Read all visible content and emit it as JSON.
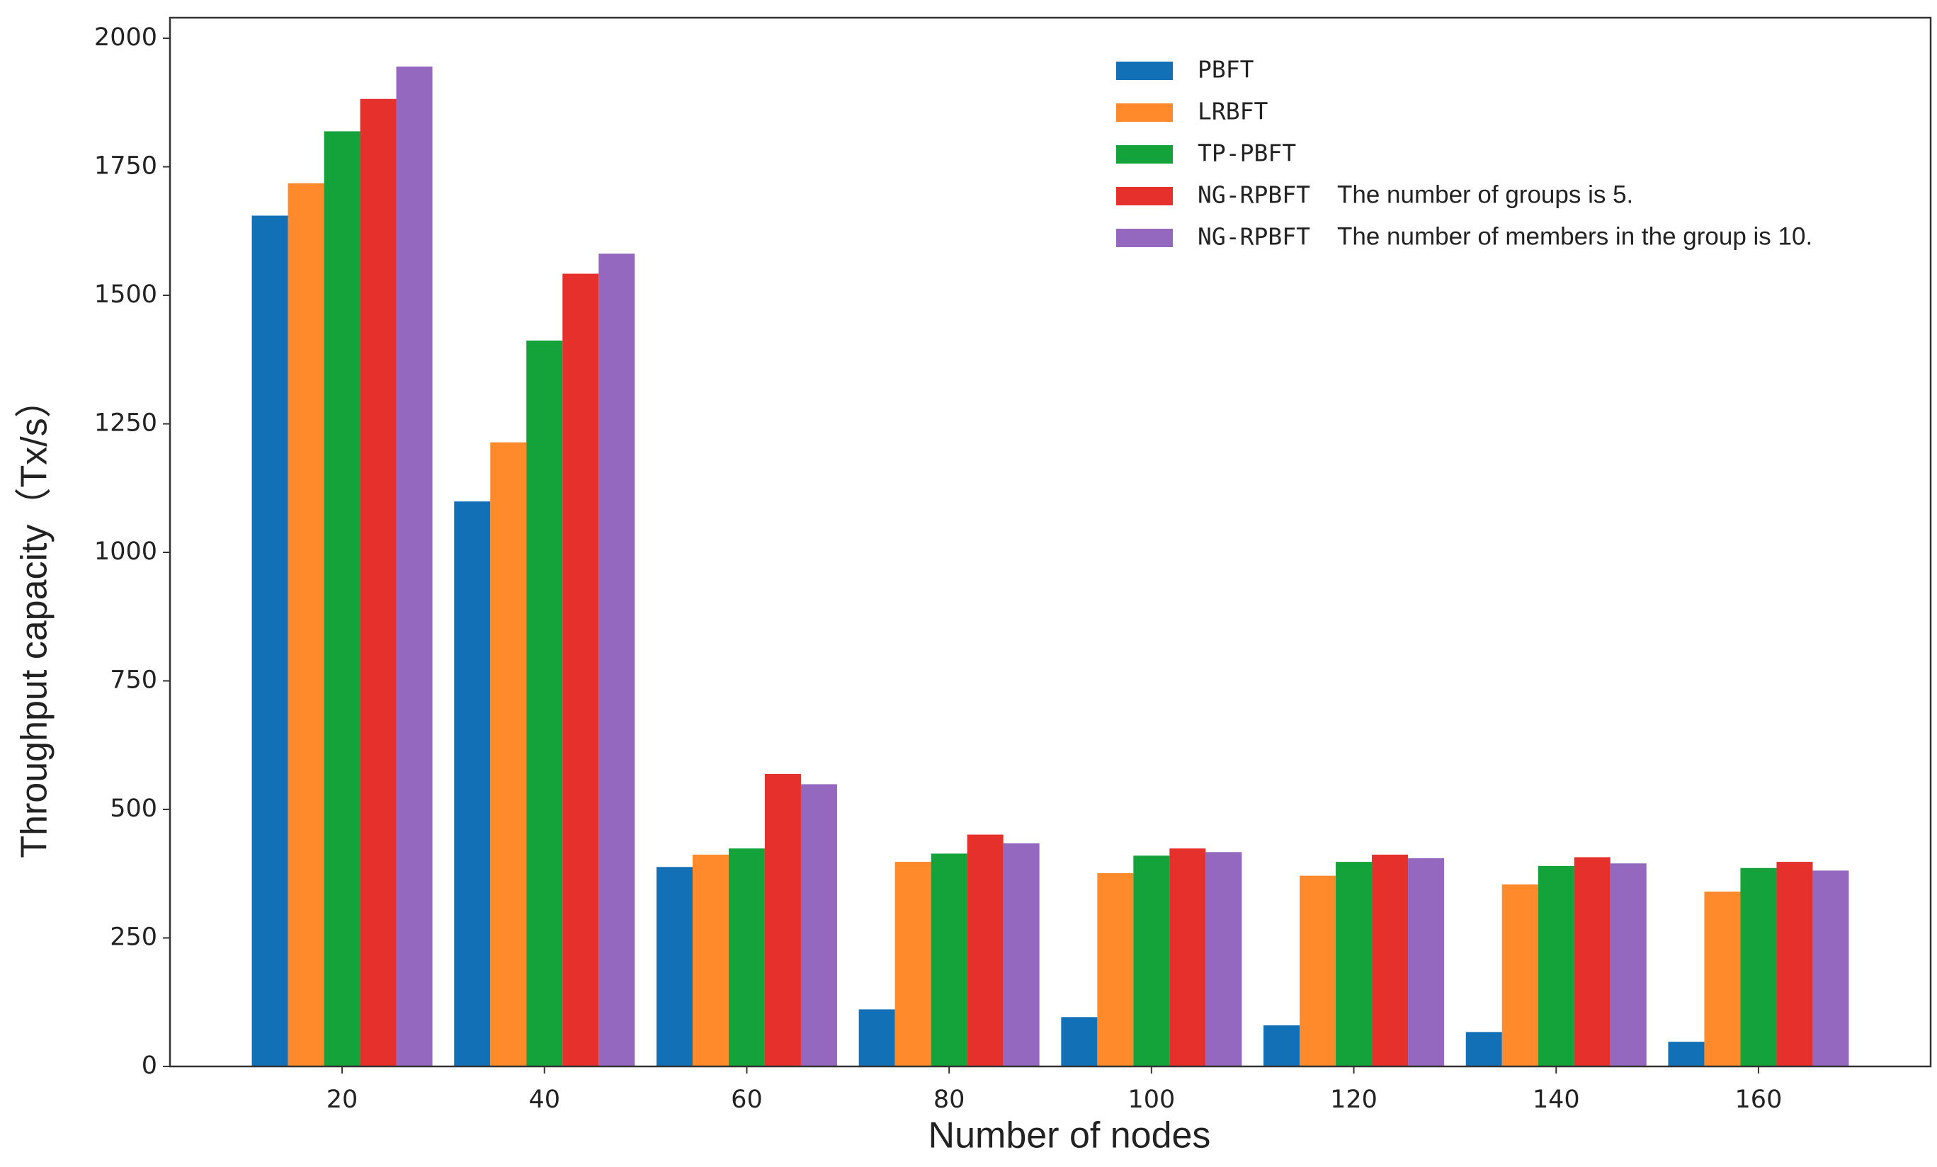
{
  "chart_data": {
    "type": "bar",
    "y_label": "Throughput capacity（Tx/s）",
    "x_label": "Number of nodes",
    "categories": [
      "20",
      "40",
      "60",
      "80",
      "100",
      "120",
      "140",
      "160"
    ],
    "series": [
      {
        "name": "PBFT",
        "color": "#1170b6",
        "values": [
          1655,
          1099,
          388,
          111,
          96,
          80,
          67,
          48
        ]
      },
      {
        "name": "LRBFT",
        "color": "#ff8a2b",
        "values": [
          1718,
          1214,
          412,
          398,
          376,
          371,
          354,
          340
        ]
      },
      {
        "name": "TP-PBFT",
        "color": "#14a23a",
        "values": [
          1819,
          1412,
          424,
          414,
          410,
          398,
          390,
          386
        ]
      },
      {
        "name": "NG-RPBFT",
        "color": "#e5302b",
        "values": [
          1882,
          1542,
          569,
          451,
          424,
          412,
          407,
          398
        ]
      },
      {
        "name": "NG-RPBFT",
        "color": "#9468bf",
        "values": [
          1945,
          1581,
          549,
          434,
          417,
          405,
          395,
          381
        ]
      }
    ],
    "legend_annotations": [
      "The number of groups is 5.",
      "The number of members in the group is 10."
    ],
    "ylim": [
      0,
      2040
    ],
    "yticks": [
      0,
      250,
      500,
      750,
      1000,
      1250,
      1500,
      1750,
      2000
    ],
    "legend_position": "upper right"
  }
}
